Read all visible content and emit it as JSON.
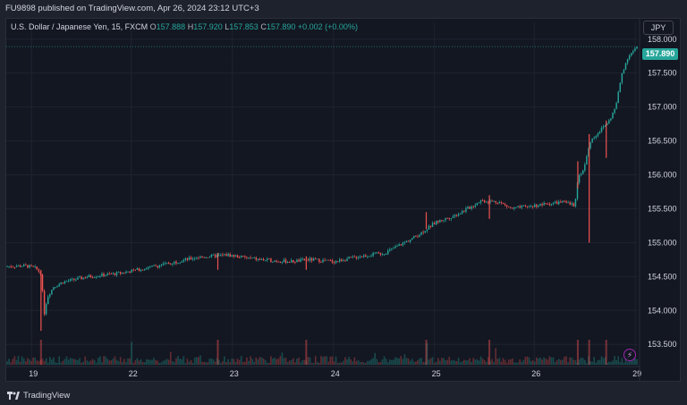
{
  "header": {
    "publisher_line": "FU9898 published on TradingView.com, Apr 26, 2024 23:12 UTC+3"
  },
  "legend": {
    "symbol": "U.S. Dollar / Japanese Yen, 15, FXCM",
    "o_label": "O",
    "o_value": "157.888",
    "h_label": "H",
    "h_value": "157.920",
    "l_label": "L",
    "l_value": "157.853",
    "c_label": "C",
    "c_value": "157.890",
    "change": "+0.002 (+0.00%)"
  },
  "currency_button": "JPY",
  "last_price_badge": "157.890",
  "footer": {
    "brand": "TradingView"
  },
  "colors": {
    "up": "#26a69a",
    "down": "#ef5350",
    "grid": "#1f2330",
    "accent_purple": "#9c27b0"
  },
  "icons": {
    "brand_logo": "tradingview-logo-icon",
    "alert": "lightning-icon"
  },
  "chart_data": {
    "type": "candlestick",
    "ylabel": "",
    "xlabel": "",
    "ylim": [
      153.2,
      158.05
    ],
    "y_ticks": [
      "158.000",
      "157.500",
      "157.000",
      "156.500",
      "156.000",
      "155.500",
      "155.000",
      "154.500",
      "154.000",
      "153.500"
    ],
    "x_ticks": [
      "19",
      "22",
      "23",
      "24",
      "25",
      "26",
      "29"
    ],
    "grid": true,
    "path": [
      [
        0.0,
        154.65
      ],
      [
        0.03,
        154.66
      ],
      [
        0.045,
        154.63
      ],
      [
        0.055,
        154.55
      ],
      [
        0.06,
        153.95
      ],
      [
        0.065,
        154.2
      ],
      [
        0.075,
        154.35
      ],
      [
        0.09,
        154.42
      ],
      [
        0.13,
        154.5
      ],
      [
        0.18,
        154.55
      ],
      [
        0.24,
        154.66
      ],
      [
        0.3,
        154.78
      ],
      [
        0.35,
        154.82
      ],
      [
        0.4,
        154.75
      ],
      [
        0.45,
        154.72
      ],
      [
        0.48,
        154.75
      ],
      [
        0.52,
        154.72
      ],
      [
        0.56,
        154.8
      ],
      [
        0.6,
        154.85
      ],
      [
        0.62,
        154.95
      ],
      [
        0.65,
        155.1
      ],
      [
        0.68,
        155.3
      ],
      [
        0.71,
        155.4
      ],
      [
        0.74,
        155.55
      ],
      [
        0.75,
        155.62
      ],
      [
        0.78,
        155.6
      ],
      [
        0.8,
        155.5
      ],
      [
        0.84,
        155.55
      ],
      [
        0.88,
        155.6
      ],
      [
        0.9,
        155.55
      ],
      [
        0.905,
        155.95
      ],
      [
        0.915,
        156.1
      ],
      [
        0.925,
        156.5
      ],
      [
        0.935,
        156.6
      ],
      [
        0.945,
        156.7
      ],
      [
        0.955,
        156.8
      ],
      [
        0.965,
        157.0
      ],
      [
        0.975,
        157.5
      ],
      [
        0.985,
        157.75
      ],
      [
        1.0,
        157.89
      ]
    ],
    "spikes": [
      {
        "x": 0.055,
        "low": 153.7,
        "high": 154.6
      },
      {
        "x": 0.335,
        "low": 154.6,
        "high": 154.85
      },
      {
        "x": 0.475,
        "low": 154.6,
        "high": 154.8
      },
      {
        "x": 0.665,
        "low": 155.2,
        "high": 155.45
      },
      {
        "x": 0.765,
        "low": 155.35,
        "high": 155.7
      },
      {
        "x": 0.905,
        "low": 155.8,
        "high": 156.2
      },
      {
        "x": 0.923,
        "low": 155.0,
        "high": 156.6
      },
      {
        "x": 0.95,
        "low": 156.25,
        "high": 156.8
      }
    ]
  }
}
